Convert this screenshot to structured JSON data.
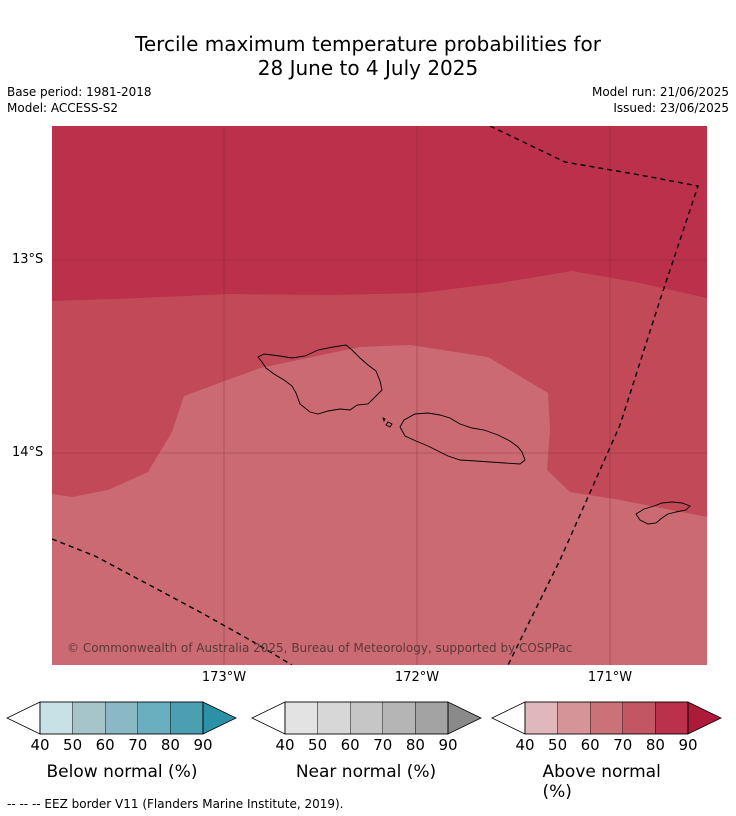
{
  "title": {
    "line1": "Tercile maximum temperature probabilities for",
    "line2": "28 June to 4 July 2025"
  },
  "meta": {
    "base_period": "Base period: 1981-2018",
    "model": "Model: ACCESS-S2",
    "model_run": "Model run: 21/06/2025",
    "issued": "Issued: 23/06/2025"
  },
  "map": {
    "lat_labels": [
      "13°S",
      "14°S"
    ],
    "lon_labels": [
      "173°W",
      "172°W",
      "171°W"
    ],
    "copyright": "© Commonwealth of Australia 2025, Bureau of Meteorology, supported by COSPPac",
    "fill_colors": {
      "above_90": "#bb304a",
      "above_80": "#c24a58",
      "above_70": "#cb6a73"
    }
  },
  "colorbars": [
    {
      "label": "Below normal (%)",
      "ticks": [
        "40",
        "50",
        "60",
        "70",
        "80",
        "90"
      ],
      "colors": [
        "#ffffff",
        "#c8e1e7",
        "#a6c5cb",
        "#8ab8c4",
        "#6aafbf",
        "#4b9fb1",
        "#2c90a6"
      ]
    },
    {
      "label": "Near normal (%)",
      "ticks": [
        "40",
        "50",
        "60",
        "70",
        "80",
        "90"
      ],
      "colors": [
        "#ffffff",
        "#e3e3e3",
        "#d7d7d7",
        "#c6c6c6",
        "#b5b5b5",
        "#a3a3a3",
        "#8a8a8a"
      ]
    },
    {
      "label": "Above normal (%)",
      "ticks": [
        "40",
        "50",
        "60",
        "70",
        "80",
        "90"
      ],
      "colors": [
        "#ffffff",
        "#e0b7bb",
        "#d59498",
        "#cb7178",
        "#c25663",
        "#bb304a",
        "#ad1a3a"
      ]
    }
  ],
  "footnote": "--  --  -- EEZ border V11 (Flanders Marine Institute, 2019)."
}
